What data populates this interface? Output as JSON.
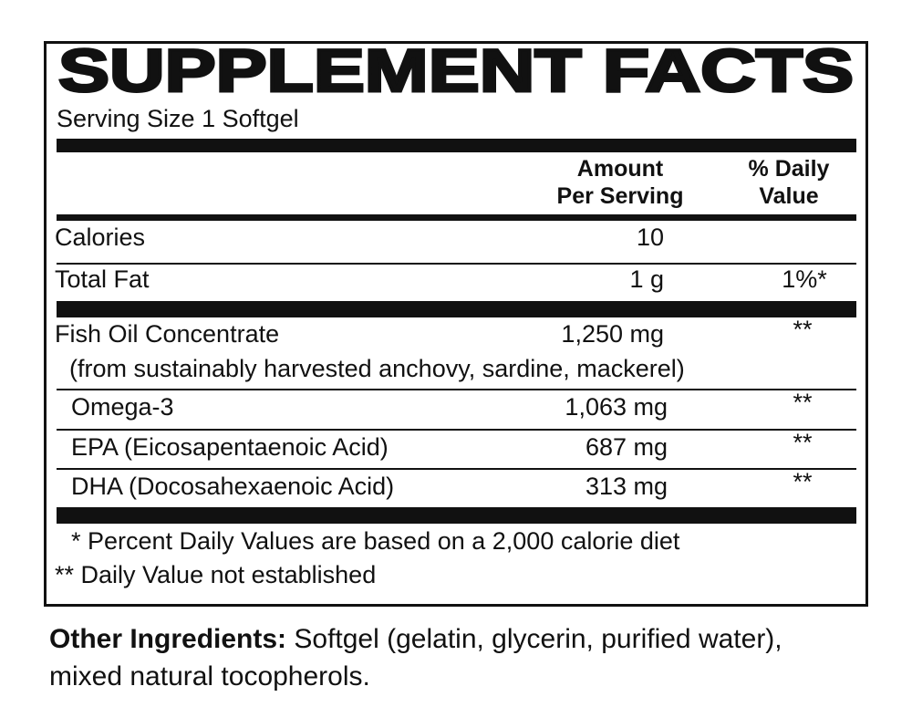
{
  "title": "SUPPLEMENT FACTS",
  "serving_size": "Serving Size 1 Softgel",
  "header": {
    "amount": [
      "Amount",
      "Per Serving"
    ],
    "daily_value": [
      "% Daily",
      "Value"
    ]
  },
  "rows": [
    {
      "name": "Calories",
      "amount": "10",
      "daily": ""
    },
    {
      "name": "Total Fat",
      "amount": "1 g",
      "daily": "1%*"
    },
    {
      "name": "Fish Oil Concentrate",
      "amount": "1,250 mg",
      "daily": "**",
      "note": "(from sustainably harvested anchovy, sardine, mackerel)"
    },
    {
      "name": "Omega-3",
      "amount": "1,063 mg",
      "daily": "**"
    },
    {
      "name": "EPA (Eicosapentaenoic Acid)",
      "amount": "687 mg",
      "daily": "**"
    },
    {
      "name": "DHA (Docosahexaenoic Acid)",
      "amount": "313 mg",
      "daily": "**"
    }
  ],
  "footnotes": [
    "* Percent Daily Values are based on a 2,000 calorie diet",
    "** Daily Value not established"
  ],
  "other_ingredients": {
    "label": "Other Ingredients:",
    "text": "Softgel (gelatin, glycerin, purified water), mixed natural tocopherols."
  }
}
